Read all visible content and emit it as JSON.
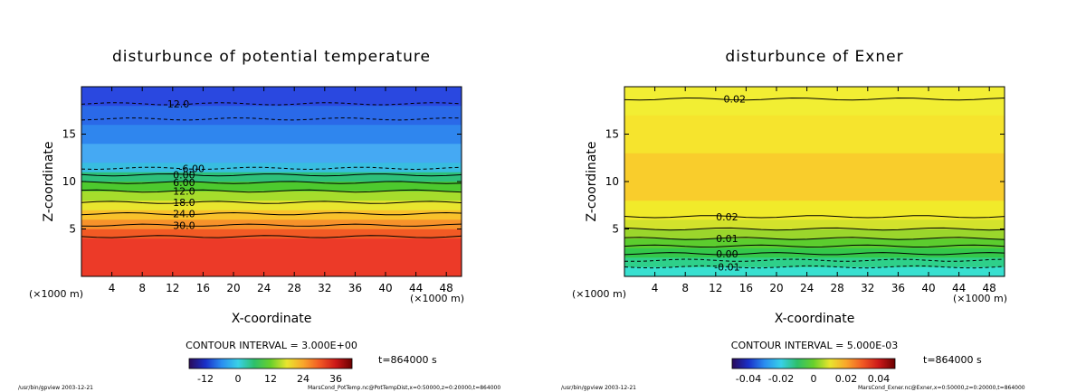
{
  "chart_data": [
    {
      "type": "heatmap",
      "title": "disturbunce of potential temperature",
      "xlabel": "X-coordinate",
      "ylabel": "Z-coordinate",
      "x_unit": "(×1000 m)",
      "xlim": [
        0,
        50
      ],
      "ylim": [
        0,
        20
      ],
      "x_ticks": [
        4,
        8,
        12,
        16,
        20,
        24,
        28,
        32,
        36,
        40,
        44,
        48
      ],
      "y_ticks": [
        5,
        10,
        15
      ],
      "contour_interval": "CONTOUR INTERVAL = 3.000E+00",
      "time": "t=864000 s",
      "colorbar": {
        "ticks": [
          "-12",
          "0",
          "12",
          "24",
          "36"
        ]
      },
      "bands": [
        {
          "z": [
            0,
            4
          ],
          "color": "#ec3a28"
        },
        {
          "z": [
            4,
            5
          ],
          "color": "#f25a24"
        },
        {
          "z": [
            5,
            6
          ],
          "color": "#f7922a"
        },
        {
          "z": [
            6,
            7
          ],
          "color": "#f9c12b"
        },
        {
          "z": [
            7,
            8
          ],
          "color": "#e9e52e"
        },
        {
          "z": [
            8,
            9
          ],
          "color": "#a6dd2c"
        },
        {
          "z": [
            9,
            10
          ],
          "color": "#4dc92e"
        },
        {
          "z": [
            10,
            11
          ],
          "color": "#2ec07a"
        },
        {
          "z": [
            11,
            12
          ],
          "color": "#38bde0"
        },
        {
          "z": [
            12,
            14
          ],
          "color": "#45a9f3"
        },
        {
          "z": [
            14,
            16
          ],
          "color": "#2f86ee"
        },
        {
          "z": [
            16,
            18
          ],
          "color": "#2a69e8"
        },
        {
          "z": [
            18,
            20
          ],
          "color": "#2a48e0"
        }
      ],
      "contours": [
        {
          "z": 4.2,
          "label": "",
          "style": "solid"
        },
        {
          "z": 5.4,
          "label": "30.0",
          "label_x": 13.5,
          "style": "solid"
        },
        {
          "z": 6.6,
          "label": "24.0",
          "label_x": 13.5,
          "style": "solid"
        },
        {
          "z": 7.8,
          "label": "18.0",
          "label_x": 13.5,
          "style": "solid"
        },
        {
          "z": 9.0,
          "label": "12.0",
          "label_x": 13.5,
          "style": "solid"
        },
        {
          "z": 9.9,
          "label": "6.00",
          "label_x": 13.5,
          "style": "solid"
        },
        {
          "z": 10.7,
          "label": "0.00",
          "label_x": 13.5,
          "style": "solid"
        },
        {
          "z": 11.4,
          "label": "-6.00",
          "label_x": 14.5,
          "style": "dashed"
        },
        {
          "z": 16.6,
          "label": "",
          "style": "dashed"
        },
        {
          "z": 18.2,
          "label": "-12.0",
          "label_x": 12.5,
          "style": "dashed"
        }
      ]
    },
    {
      "type": "heatmap",
      "title": "disturbunce of Exner",
      "xlabel": "X-coordinate",
      "ylabel": "Z-coordinate",
      "x_unit": "(×1000 m)",
      "xlim": [
        0,
        50
      ],
      "ylim": [
        0,
        20
      ],
      "x_ticks": [
        4,
        8,
        12,
        16,
        20,
        24,
        28,
        32,
        36,
        40,
        44,
        48
      ],
      "y_ticks": [
        5,
        10,
        15
      ],
      "contour_interval": "CONTOUR INTERVAL = 5.000E-03",
      "time": "t=864000 s",
      "colorbar": {
        "ticks": [
          "-0.04",
          "-0.02",
          "0",
          "0.02",
          "0.04"
        ]
      },
      "bands": [
        {
          "z": [
            0,
            1
          ],
          "color": "#38e0d0"
        },
        {
          "z": [
            1,
            2
          ],
          "color": "#2ed08a"
        },
        {
          "z": [
            2,
            3
          ],
          "color": "#34c84a"
        },
        {
          "z": [
            3,
            4
          ],
          "color": "#5ccd2e"
        },
        {
          "z": [
            4,
            5
          ],
          "color": "#9bd62c"
        },
        {
          "z": [
            5,
            6
          ],
          "color": "#d3e22c"
        },
        {
          "z": [
            6,
            8
          ],
          "color": "#f1ea2a"
        },
        {
          "z": [
            8,
            13
          ],
          "color": "#f9cd2c"
        },
        {
          "z": [
            13,
            17
          ],
          "color": "#f6e42d"
        },
        {
          "z": [
            17,
            20
          ],
          "color": "#f2ee33"
        }
      ],
      "contours": [
        {
          "z": 1.0,
          "label": "-0.01",
          "label_x": 13.5,
          "style": "dashed"
        },
        {
          "z": 1.7,
          "label": "",
          "style": "dashed"
        },
        {
          "z": 2.4,
          "label": "0.00",
          "label_x": 13.5,
          "style": "solid"
        },
        {
          "z": 3.2,
          "label": "",
          "style": "solid"
        },
        {
          "z": 4.0,
          "label": "0.01",
          "label_x": 13.5,
          "style": "solid"
        },
        {
          "z": 5.0,
          "label": "",
          "style": "solid"
        },
        {
          "z": 6.3,
          "label": "0.02",
          "label_x": 13.5,
          "style": "solid"
        },
        {
          "z": 18.7,
          "label": "0.02",
          "label_x": 14.5,
          "style": "solid"
        }
      ]
    }
  ],
  "footer": {
    "left_path_1": "/usr/bin/gpview  2003-12-21",
    "left_path_2": "/usr/bin/gpview  2003-12-21",
    "file_1": "MarsCond_PotTemp.nc@PotTempDist,x=0:50000,z=0:20000,t=864000",
    "file_2": "MarsCond_Exner.nc@Exner,x=0:50000,z=0:20000,t=864000"
  },
  "colors": {
    "rainbow": [
      "#2a0a5a",
      "#1a30c8",
      "#2a8ef0",
      "#38d0e8",
      "#2ec06a",
      "#68d02c",
      "#e9e52e",
      "#f9a62b",
      "#f25a24",
      "#cc1818",
      "#6a0000"
    ]
  }
}
